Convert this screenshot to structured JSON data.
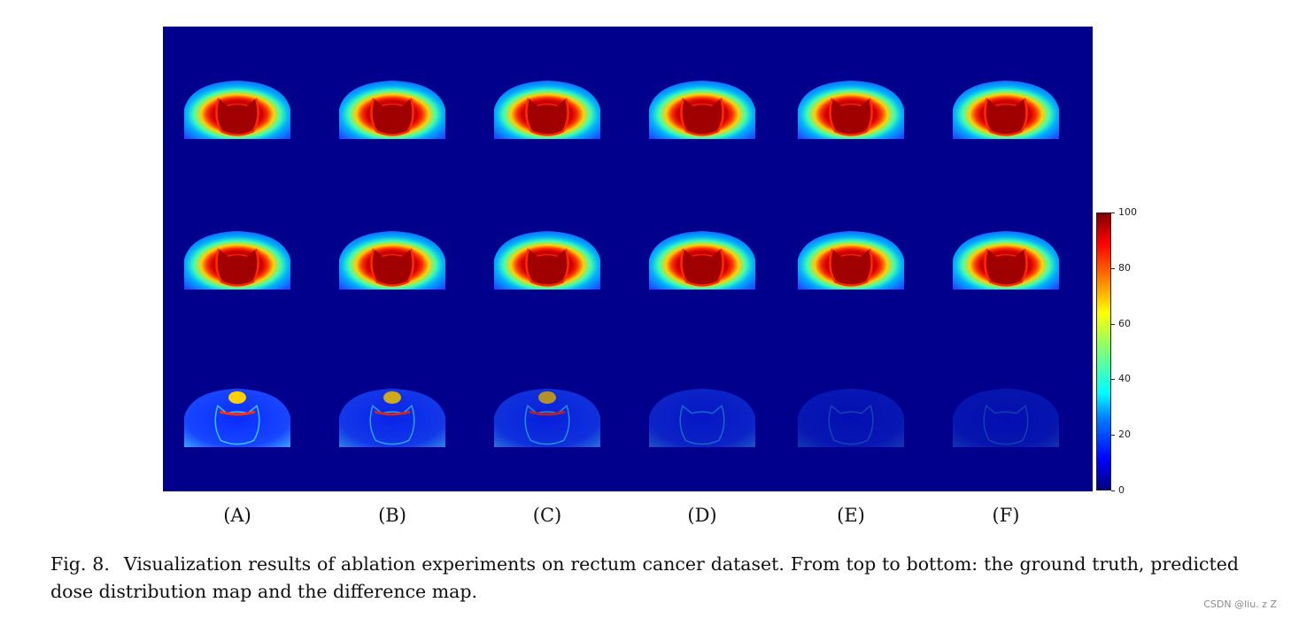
{
  "figure": {
    "columns": [
      "(A)",
      "(B)",
      "(C)",
      "(D)",
      "(E)",
      "(F)"
    ],
    "rows": 3,
    "colors": {
      "background": "#00008c",
      "dose_core": "#a00000",
      "dose_edge": "#ff2000",
      "dose_mid": "#ffd500",
      "dose_low": "#00c8ff",
      "dose_outer": "#0046ff"
    },
    "difference_intensity": [
      1.0,
      0.75,
      0.6,
      0.35,
      0.12,
      0.08
    ]
  },
  "colorbar": {
    "range": [
      0,
      100
    ],
    "ticks": [
      "100",
      "80",
      "60",
      "40",
      "20",
      "0"
    ],
    "colormap": "jet"
  },
  "caption": {
    "fig_num": "Fig. 8.",
    "text": "Visualization results of ablation experiments on rectum cancer dataset. From top to bottom: the ground truth, predicted dose distribution map and the difference map."
  },
  "watermark": "CSDN @liu. z Z"
}
